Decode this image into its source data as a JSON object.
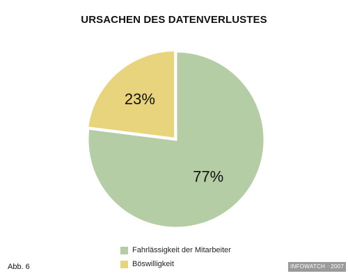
{
  "chart_data": {
    "type": "pie",
    "title": "URSACHEN DES DATENVERLUSTES",
    "slices": [
      {
        "name": "Fahrlässigkeit der Mitarbeiter",
        "value": 77,
        "label": "77%",
        "color": "#b4cda5"
      },
      {
        "name": "Böswilligkeit",
        "value": 23,
        "label": "23%",
        "color": "#e8d47c"
      }
    ],
    "legend": "bottom",
    "start_angle_deg": 0,
    "exploded_slice": "Böswilligkeit"
  },
  "figure_label": "Abb. 6",
  "source": "INFOWATCH · 2007"
}
